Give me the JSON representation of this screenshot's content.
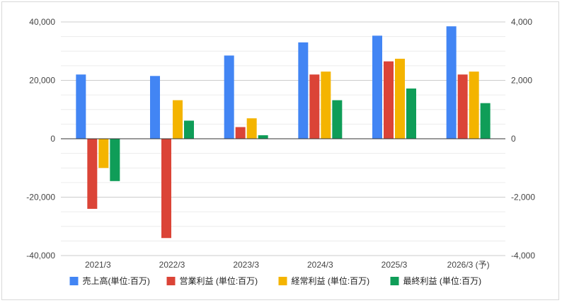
{
  "chart_data": {
    "type": "bar",
    "categories": [
      "2021/3",
      "2022/3",
      "2023/3",
      "2024/3",
      "2025/3",
      "2026/3 (予)"
    ],
    "series": [
      {
        "name": "売上高(単位:百万)",
        "axis": "left",
        "color": "#4285f4",
        "values": [
          22000,
          21500,
          28500,
          33000,
          35300,
          38500
        ]
      },
      {
        "name": "営業利益 (単位:百万)",
        "axis": "right",
        "color": "#db4437",
        "values": [
          -2400,
          -3400,
          400,
          2200,
          2650,
          2200
        ]
      },
      {
        "name": "経常利益 (単位:百万)",
        "axis": "right",
        "color": "#f4b400",
        "values": [
          -1000,
          1320,
          700,
          2300,
          2740,
          2300
        ]
      },
      {
        "name": "最終利益 (単位:百万)",
        "axis": "right",
        "color": "#0f9d58",
        "values": [
          -1450,
          620,
          120,
          1320,
          1720,
          1220
        ]
      }
    ],
    "left_axis": {
      "ylim": [
        -40000,
        40000
      ],
      "ticks": [
        "40,000",
        "20,000",
        "0",
        "-20,000",
        "-40,000"
      ],
      "tick_values": [
        40000,
        20000,
        0,
        -20000,
        -40000
      ]
    },
    "right_axis": {
      "ylim": [
        -4000,
        4000
      ],
      "ticks": [
        "4,000",
        "2,000",
        "0",
        "-2,000",
        "-4,000"
      ],
      "tick_values": [
        4000,
        2000,
        0,
        -2000,
        -4000
      ]
    },
    "grid": true,
    "legend": "bottom",
    "title": "",
    "xlabel": "",
    "ylabel": ""
  }
}
